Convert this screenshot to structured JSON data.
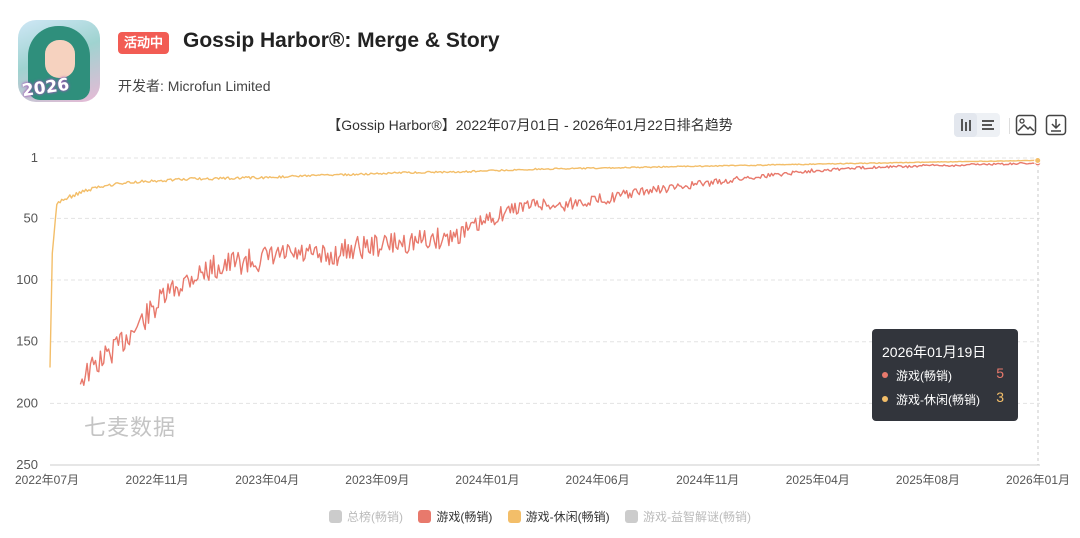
{
  "app": {
    "icon_badge": "2026",
    "status": "活动中",
    "title": "Gossip Harbor®: Merge & Story",
    "developer_label": "开发者: ",
    "developer": "Microfun Limited"
  },
  "chart_title": "【Gossip Harbor®】2022年07月01日 - 2026年01月22日排名趋势",
  "toolbar": {
    "icons": [
      "bar-chart-icon",
      "list-icon",
      "image-icon",
      "download-icon"
    ]
  },
  "watermark": "七麦数据",
  "tooltip": {
    "date": "2026年01月19日",
    "rows": [
      {
        "label": "游戏(畅销)",
        "value": "5",
        "color": "#e8796c"
      },
      {
        "label": "游戏-休闲(畅销)",
        "value": "3",
        "color": "#f3be69"
      }
    ]
  },
  "legend": [
    {
      "label": "总榜(畅销)",
      "color": "#cccccc",
      "active": false
    },
    {
      "label": "游戏(畅销)",
      "color": "#e8796c",
      "active": true
    },
    {
      "label": "游戏-休闲(畅销)",
      "color": "#f3be69",
      "active": true
    },
    {
      "label": "游戏-益智解谜(畅销)",
      "color": "#cccccc",
      "active": false
    }
  ],
  "chart_data": {
    "type": "line",
    "title": "【Gossip Harbor®】2022年07月01日 - 2026年01月22日排名趋势",
    "y_inverted": true,
    "ylim": [
      1,
      250
    ],
    "y_ticks": [
      1,
      50,
      100,
      150,
      200,
      250
    ],
    "x_ticks": [
      "2022年07月",
      "2022年11月",
      "2023年04月",
      "2023年09月",
      "2024年01月",
      "2024年06月",
      "2024年11月",
      "2025年04月",
      "2025年08月",
      "2026年01月"
    ],
    "grid": true,
    "legend_position": "bottom",
    "series": [
      {
        "name": "游戏(畅销)",
        "color": "#e8796c",
        "x": [
          "2022-08-10",
          "2022-09-01",
          "2022-10-01",
          "2022-11-01",
          "2022-12-01",
          "2023-01-01",
          "2023-02-01",
          "2023-03-01",
          "2023-04-01",
          "2023-05-01",
          "2023-06-01",
          "2023-07-01",
          "2023-08-01",
          "2023-09-01",
          "2023-10-01",
          "2023-11-01",
          "2023-12-01",
          "2024-01-01",
          "2024-02-01",
          "2024-03-01",
          "2024-04-01",
          "2024-05-01",
          "2024-06-01",
          "2024-07-01",
          "2024-08-01",
          "2024-09-01",
          "2024-10-01",
          "2024-11-01",
          "2024-12-01",
          "2025-01-01",
          "2025-02-01",
          "2025-03-01",
          "2025-04-01",
          "2025-05-01",
          "2025-06-01",
          "2025-07-01",
          "2025-08-01",
          "2025-09-01",
          "2025-10-01",
          "2025-11-01",
          "2025-12-01",
          "2026-01-19"
        ],
        "values": [
          180,
          168,
          152,
          132,
          112,
          98,
          90,
          86,
          84,
          80,
          80,
          82,
          74,
          72,
          70,
          68,
          66,
          60,
          50,
          42,
          38,
          40,
          36,
          34,
          30,
          27,
          25,
          22,
          20,
          17,
          15,
          13,
          11,
          10,
          9,
          8,
          8,
          7,
          7,
          6,
          6,
          5
        ]
      },
      {
        "name": "游戏-休闲(畅销)",
        "color": "#f3be69",
        "x": [
          "2022-07-01",
          "2022-07-04",
          "2022-07-10",
          "2022-07-25",
          "2022-08-15",
          "2022-09-15",
          "2022-11-01",
          "2023-01-01",
          "2023-04-01",
          "2023-07-01",
          "2023-10-01",
          "2024-01-01",
          "2024-04-01",
          "2024-07-01",
          "2024-10-01",
          "2025-01-01",
          "2025-04-01",
          "2025-07-01",
          "2025-10-01",
          "2026-01-19"
        ],
        "values": [
          170,
          80,
          38,
          33,
          28,
          23,
          20,
          18,
          17,
          15,
          13,
          12,
          10,
          9,
          8,
          7,
          6,
          5,
          4,
          3
        ]
      }
    ]
  }
}
